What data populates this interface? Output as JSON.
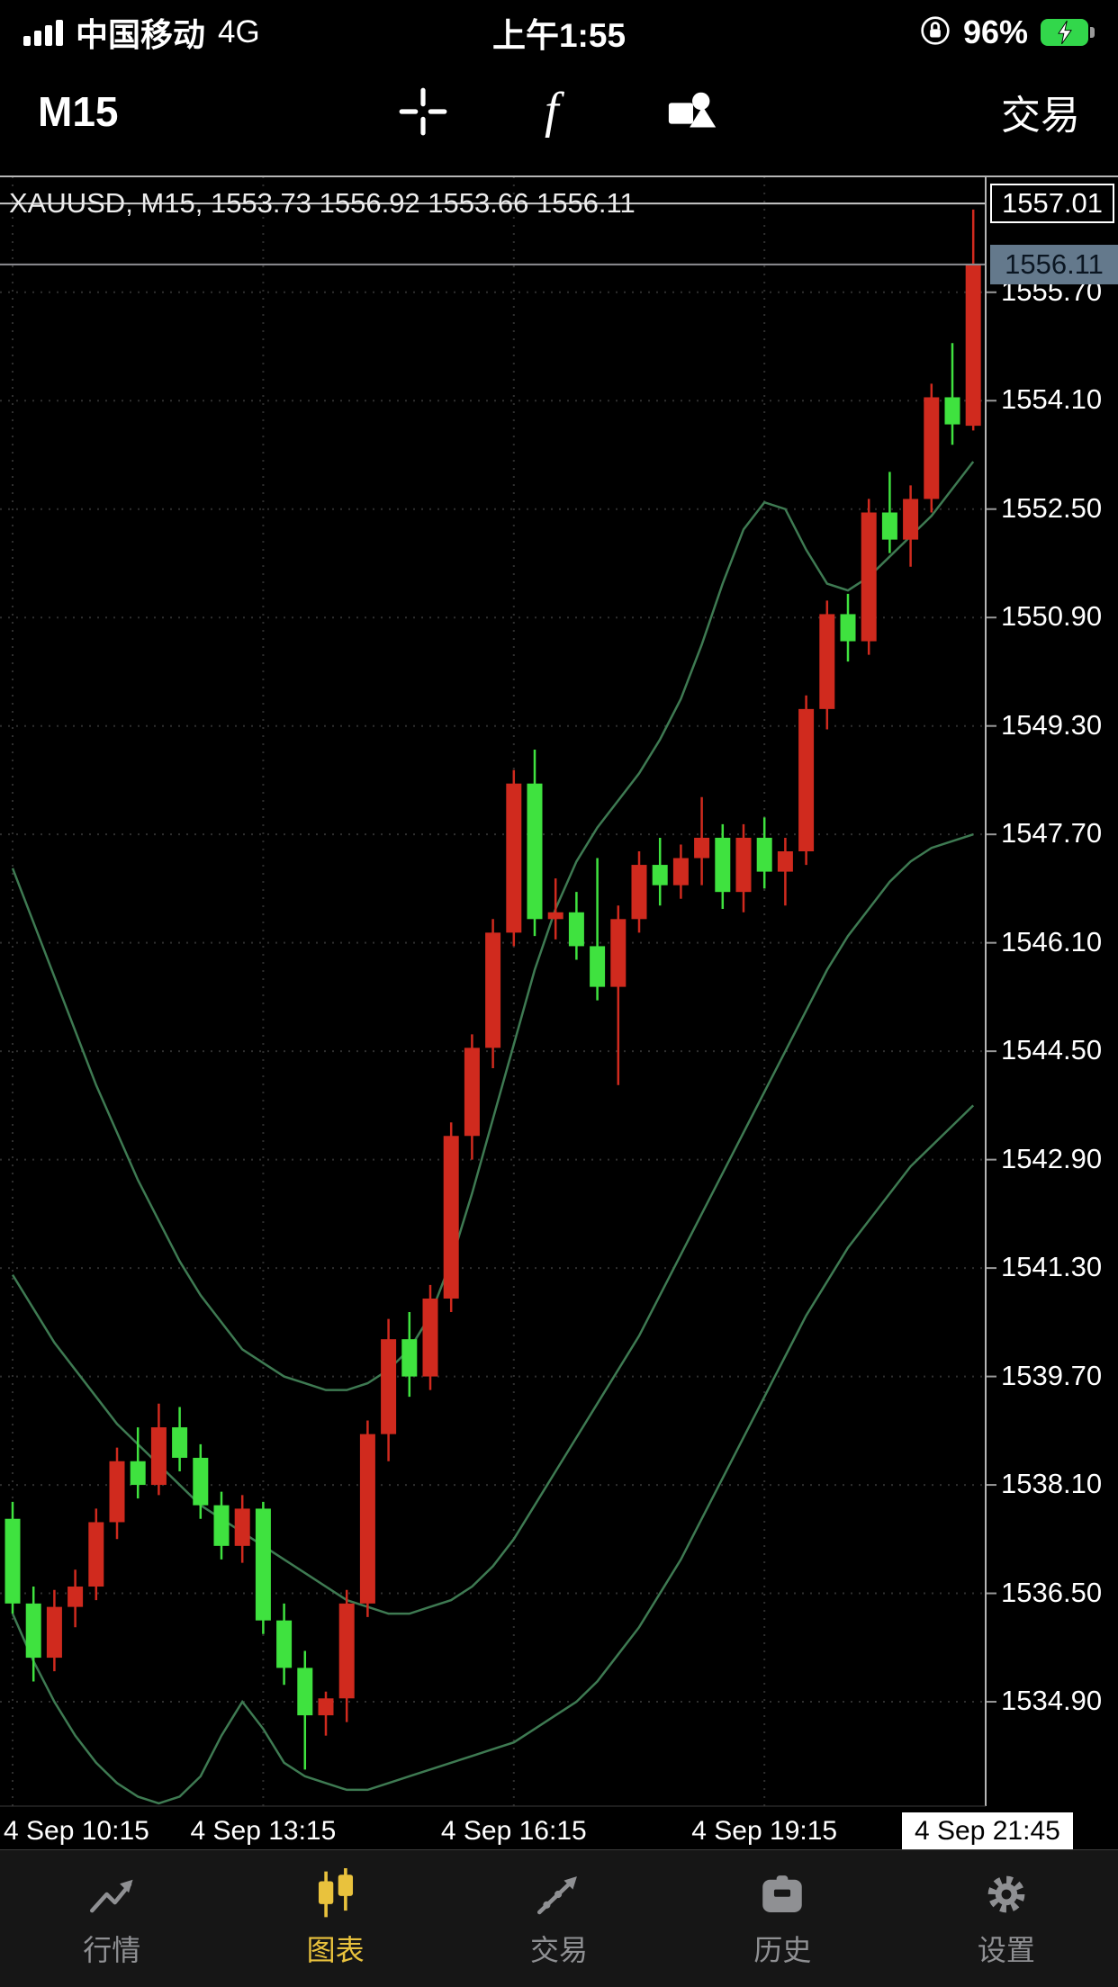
{
  "status_bar": {
    "carrier": "中国移动",
    "network": "4G",
    "time": "上午1:55",
    "battery_percent": "96%",
    "battery_color": "#32d74b"
  },
  "toolbar": {
    "timeframe": "M15",
    "trade_label": "交易"
  },
  "tab_bar": {
    "active_color": "#e9c23d",
    "inactive_color": "#8f9093",
    "items": [
      {
        "label": "行情",
        "active": false
      },
      {
        "label": "图表",
        "active": true
      },
      {
        "label": "交易",
        "active": false
      },
      {
        "label": "历史",
        "active": false
      },
      {
        "label": "设置",
        "active": false
      }
    ]
  },
  "chart_data": {
    "type": "candlestick",
    "symbol": "XAUUSD",
    "timeframe": "M15",
    "title": "XAUUSD, M15, 1553.73 1556.92 1553.66 1556.11",
    "ohlc_current": {
      "open": 1553.73,
      "high": 1556.92,
      "low": 1553.66,
      "close": 1556.11
    },
    "ask": 1557.01,
    "bid": 1556.11,
    "ask_label": "1557.01",
    "bid_label": "1556.11",
    "ylim": [
      1533.36,
      1557.41
    ],
    "price_gridlines": [
      1555.7,
      1554.1,
      1552.5,
      1550.9,
      1549.3,
      1547.7,
      1546.1,
      1544.5,
      1542.9,
      1541.3,
      1539.7,
      1538.1,
      1536.5,
      1534.9
    ],
    "time_labels": [
      {
        "index": 0,
        "label": "4 Sep 10:15"
      },
      {
        "index": 12,
        "label": "4 Sep 13:15"
      },
      {
        "index": 24,
        "label": "4 Sep 16:15"
      },
      {
        "index": 36,
        "label": "4 Sep 19:15"
      }
    ],
    "current_time_label": "4 Sep 21:45",
    "colors": {
      "up": "#d02a1e",
      "down": "#3fe23f",
      "band": "#3e7a52",
      "grid": "#2f2f2f",
      "ask_line": "#c8c8c8",
      "bid_line": "#8e8e93",
      "border": "#b5b5b5"
    },
    "candles": [
      {
        "t": "10:15",
        "o": 1537.6,
        "h": 1537.85,
        "l": 1536.2,
        "c": 1536.35
      },
      {
        "t": "10:30",
        "o": 1536.35,
        "h": 1536.6,
        "l": 1535.2,
        "c": 1535.55
      },
      {
        "t": "10:45",
        "o": 1535.55,
        "h": 1536.55,
        "l": 1535.35,
        "c": 1536.3
      },
      {
        "t": "11:00",
        "o": 1536.3,
        "h": 1536.85,
        "l": 1536.0,
        "c": 1536.6
      },
      {
        "t": "11:15",
        "o": 1536.6,
        "h": 1537.75,
        "l": 1536.4,
        "c": 1537.55
      },
      {
        "t": "11:30",
        "o": 1537.55,
        "h": 1538.65,
        "l": 1537.3,
        "c": 1538.45
      },
      {
        "t": "11:45",
        "o": 1538.45,
        "h": 1538.95,
        "l": 1537.9,
        "c": 1538.1
      },
      {
        "t": "12:00",
        "o": 1538.1,
        "h": 1539.3,
        "l": 1537.95,
        "c": 1538.95
      },
      {
        "t": "12:15",
        "o": 1538.95,
        "h": 1539.25,
        "l": 1538.3,
        "c": 1538.5
      },
      {
        "t": "12:30",
        "o": 1538.5,
        "h": 1538.7,
        "l": 1537.6,
        "c": 1537.8
      },
      {
        "t": "12:45",
        "o": 1537.8,
        "h": 1538.0,
        "l": 1537.0,
        "c": 1537.2
      },
      {
        "t": "13:00",
        "o": 1537.2,
        "h": 1537.95,
        "l": 1536.95,
        "c": 1537.75
      },
      {
        "t": "13:15",
        "o": 1537.75,
        "h": 1537.85,
        "l": 1535.9,
        "c": 1536.1
      },
      {
        "t": "13:30",
        "o": 1536.1,
        "h": 1536.35,
        "l": 1535.15,
        "c": 1535.4
      },
      {
        "t": "13:45",
        "o": 1535.4,
        "h": 1535.65,
        "l": 1533.9,
        "c": 1534.7
      },
      {
        "t": "14:00",
        "o": 1534.7,
        "h": 1535.05,
        "l": 1534.4,
        "c": 1534.95
      },
      {
        "t": "14:15",
        "o": 1534.95,
        "h": 1536.55,
        "l": 1534.6,
        "c": 1536.35
      },
      {
        "t": "14:30",
        "o": 1536.35,
        "h": 1539.05,
        "l": 1536.15,
        "c": 1538.85
      },
      {
        "t": "14:45",
        "o": 1538.85,
        "h": 1540.55,
        "l": 1538.45,
        "c": 1540.25
      },
      {
        "t": "15:00",
        "o": 1540.25,
        "h": 1540.65,
        "l": 1539.4,
        "c": 1539.7
      },
      {
        "t": "15:15",
        "o": 1539.7,
        "h": 1541.05,
        "l": 1539.5,
        "c": 1540.85
      },
      {
        "t": "15:30",
        "o": 1540.85,
        "h": 1543.45,
        "l": 1540.65,
        "c": 1543.25
      },
      {
        "t": "15:45",
        "o": 1543.25,
        "h": 1544.75,
        "l": 1542.9,
        "c": 1544.55
      },
      {
        "t": "16:00",
        "o": 1544.55,
        "h": 1546.45,
        "l": 1544.25,
        "c": 1546.25
      },
      {
        "t": "16:15",
        "o": 1546.25,
        "h": 1548.65,
        "l": 1546.05,
        "c": 1548.45
      },
      {
        "t": "16:30",
        "o": 1548.45,
        "h": 1548.95,
        "l": 1546.2,
        "c": 1546.45
      },
      {
        "t": "16:45",
        "o": 1546.45,
        "h": 1547.05,
        "l": 1546.15,
        "c": 1546.55
      },
      {
        "t": "17:00",
        "o": 1546.55,
        "h": 1546.85,
        "l": 1545.85,
        "c": 1546.05
      },
      {
        "t": "17:15",
        "o": 1546.05,
        "h": 1547.35,
        "l": 1545.25,
        "c": 1545.45
      },
      {
        "t": "17:30",
        "o": 1545.45,
        "h": 1546.65,
        "l": 1544.0,
        "c": 1546.45
      },
      {
        "t": "17:45",
        "o": 1546.45,
        "h": 1547.45,
        "l": 1546.25,
        "c": 1547.25
      },
      {
        "t": "18:00",
        "o": 1547.25,
        "h": 1547.65,
        "l": 1546.65,
        "c": 1546.95
      },
      {
        "t": "18:15",
        "o": 1546.95,
        "h": 1547.55,
        "l": 1546.75,
        "c": 1547.35
      },
      {
        "t": "18:30",
        "o": 1547.35,
        "h": 1548.25,
        "l": 1546.95,
        "c": 1547.65
      },
      {
        "t": "18:45",
        "o": 1547.65,
        "h": 1547.85,
        "l": 1546.6,
        "c": 1546.85
      },
      {
        "t": "19:00",
        "o": 1546.85,
        "h": 1547.85,
        "l": 1546.55,
        "c": 1547.65
      },
      {
        "t": "19:15",
        "o": 1547.65,
        "h": 1547.95,
        "l": 1546.9,
        "c": 1547.15
      },
      {
        "t": "19:30",
        "o": 1547.15,
        "h": 1547.65,
        "l": 1546.65,
        "c": 1547.45
      },
      {
        "t": "19:45",
        "o": 1547.45,
        "h": 1549.75,
        "l": 1547.25,
        "c": 1549.55
      },
      {
        "t": "20:00",
        "o": 1549.55,
        "h": 1551.15,
        "l": 1549.25,
        "c": 1550.95
      },
      {
        "t": "20:15",
        "o": 1550.95,
        "h": 1551.25,
        "l": 1550.25,
        "c": 1550.55
      },
      {
        "t": "20:30",
        "o": 1550.55,
        "h": 1552.65,
        "l": 1550.35,
        "c": 1552.45
      },
      {
        "t": "20:45",
        "o": 1552.45,
        "h": 1553.05,
        "l": 1551.85,
        "c": 1552.05
      },
      {
        "t": "21:00",
        "o": 1552.05,
        "h": 1552.85,
        "l": 1551.65,
        "c": 1552.65
      },
      {
        "t": "21:15",
        "o": 1552.65,
        "h": 1554.35,
        "l": 1552.45,
        "c": 1554.15
      },
      {
        "t": "21:30",
        "o": 1554.15,
        "h": 1554.95,
        "l": 1553.45,
        "c": 1553.75
      },
      {
        "t": "21:45",
        "o": 1553.73,
        "h": 1556.92,
        "l": 1553.66,
        "c": 1556.11
      }
    ],
    "bands": {
      "upper": [
        1547.2,
        1546.4,
        1545.6,
        1544.8,
        1544.0,
        1543.3,
        1542.6,
        1542.0,
        1541.4,
        1540.9,
        1540.5,
        1540.1,
        1539.9,
        1539.7,
        1539.6,
        1539.5,
        1539.5,
        1539.6,
        1539.8,
        1540.1,
        1540.6,
        1541.4,
        1542.4,
        1543.5,
        1544.6,
        1545.7,
        1546.6,
        1547.3,
        1547.8,
        1548.2,
        1548.6,
        1549.1,
        1549.7,
        1550.5,
        1551.4,
        1552.2,
        1552.6,
        1552.5,
        1551.9,
        1551.4,
        1551.3,
        1551.5,
        1551.8,
        1552.1,
        1552.4,
        1552.8,
        1553.2
      ],
      "middle": [
        1541.2,
        1540.7,
        1540.2,
        1539.8,
        1539.4,
        1539.0,
        1538.7,
        1538.4,
        1538.1,
        1537.8,
        1537.6,
        1537.4,
        1537.2,
        1537.0,
        1536.8,
        1536.6,
        1536.4,
        1536.3,
        1536.2,
        1536.2,
        1536.3,
        1536.4,
        1536.6,
        1536.9,
        1537.3,
        1537.8,
        1538.3,
        1538.8,
        1539.3,
        1539.8,
        1540.3,
        1540.9,
        1541.5,
        1542.1,
        1542.7,
        1543.3,
        1543.9,
        1544.5,
        1545.1,
        1545.7,
        1546.2,
        1546.6,
        1547.0,
        1547.3,
        1547.5,
        1547.6,
        1547.7
      ],
      "lower": [
        1536.2,
        1535.5,
        1534.9,
        1534.4,
        1534.0,
        1533.7,
        1533.5,
        1533.4,
        1533.5,
        1533.8,
        1534.4,
        1534.9,
        1534.5,
        1534.0,
        1533.8,
        1533.7,
        1533.6,
        1533.6,
        1533.7,
        1533.8,
        1533.9,
        1534.0,
        1534.1,
        1534.2,
        1534.3,
        1534.5,
        1534.7,
        1534.9,
        1535.2,
        1535.6,
        1536.0,
        1536.5,
        1537.0,
        1537.6,
        1538.2,
        1538.8,
        1539.4,
        1540.0,
        1540.6,
        1541.1,
        1541.6,
        1542.0,
        1542.4,
        1542.8,
        1543.1,
        1543.4,
        1543.7
      ]
    }
  }
}
